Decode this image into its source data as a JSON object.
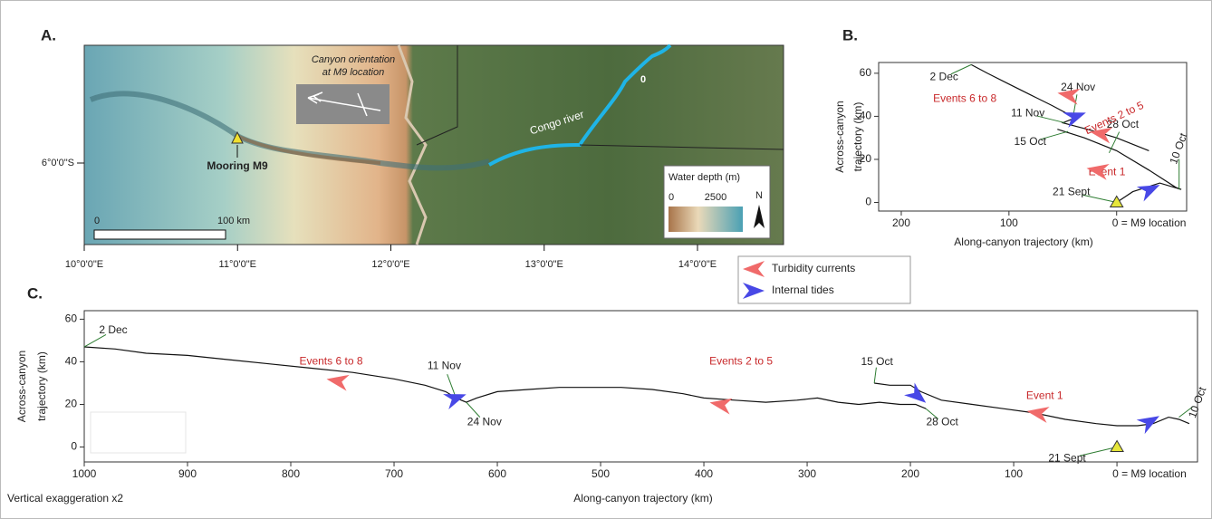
{
  "map": {
    "panel": "A.",
    "orientation_title": [
      "Canyon orientation",
      "at M9 location"
    ],
    "river": "Congo river",
    "river_mark": "0",
    "mooring": "Mooring M9",
    "depth_title": "Water depth (m)",
    "depth_min": "0",
    "depth_max": "2500",
    "north": "N",
    "scale_start": "0",
    "scale_end": "100 km",
    "latitude": "6°0'0\"S",
    "longitudes": [
      "10°0'0\"E",
      "11°0'0\"E",
      "12°0'0\"E",
      "13°0'0\"E",
      "14°0'0\"E"
    ]
  },
  "chart_data": [
    {
      "type": "line",
      "panel": "B.",
      "xlabel": "Along-canyon trajectory (km)",
      "ylabel": [
        "Across-canyon",
        "trajectory (km)"
      ],
      "xlim": [
        221,
        -65
      ],
      "ylim": [
        -4,
        65
      ],
      "xticks": [
        200,
        100,
        {
          "value": 0,
          "label": "0 = M9 location"
        }
      ],
      "yticks": [
        0,
        20,
        40,
        60
      ],
      "line_color": "#111111",
      "x": [
        135,
        120,
        100,
        80,
        60,
        45,
        40,
        50,
        35,
        20,
        0,
        -20,
        -30,
        null,
        55,
        30,
        0,
        -30,
        -55,
        -60,
        -40,
        -15,
        0
      ],
      "y": [
        64,
        60,
        55,
        50,
        45,
        41,
        39,
        37,
        35,
        33,
        30,
        26,
        24,
        null,
        34,
        30,
        24,
        15,
        7,
        6,
        9,
        5,
        0
      ],
      "series": [
        {
          "color": "#f06a6a",
          "x": [
            45,
            15,
            18
          ],
          "y": [
            50,
            32,
            15
          ]
        },
        {
          "color": "#4848e6",
          "x": [
            38,
            -31
          ],
          "y": [
            40,
            6
          ]
        }
      ],
      "events": {
        "color": "#c8282a",
        "labels": [
          "Events 6 to 8",
          "Events 2 to 5",
          "Event 1"
        ],
        "x": [
          141,
          2,
          9
        ],
        "y": [
          48,
          39,
          14
        ]
      },
      "dates": {
        "labels": [
          "2 Dec",
          "24 Nov",
          "11 Nov",
          "15 Oct",
          "28 Oct",
          "10 Oct",
          "21 Sept"
        ],
        "x": [
          135,
          40,
          48,
          45,
          7,
          -58,
          0
        ],
        "y": [
          64,
          41,
          37,
          33,
          23,
          6,
          0
        ]
      },
      "mooring": {
        "x": 0,
        "y": 0,
        "color": "#e6e63a"
      }
    },
    {
      "type": "line",
      "panel": "C.",
      "xlabel": "Along-canyon trajectory (km)",
      "ylabel": [
        "Across-canyon",
        "trajectory (km)"
      ],
      "note": "Vertical exaggeration x2",
      "xlim": [
        1000,
        -78
      ],
      "ylim": [
        -7,
        64
      ],
      "xticks": [
        1000,
        900,
        800,
        700,
        600,
        500,
        400,
        300,
        200,
        100,
        {
          "value": 0,
          "label": "0 = M9 location"
        }
      ],
      "yticks": [
        0,
        20,
        40,
        60
      ],
      "line_color": "#111111",
      "x": [
        1000,
        970,
        940,
        900,
        860,
        820,
        780,
        740,
        700,
        670,
        650,
        640,
        630,
        620,
        600,
        570,
        540,
        510,
        480,
        450,
        420,
        400,
        370,
        340,
        310,
        290,
        270,
        250,
        230,
        210,
        195,
        185,
        null,
        235,
        220,
        205,
        200,
        190,
        170,
        140,
        110,
        80,
        50,
        20,
        0,
        -20,
        -35,
        -50,
        -60,
        -70
      ],
      "y": [
        47,
        46,
        44,
        43,
        41,
        39,
        37,
        35,
        32,
        29,
        26,
        23,
        21,
        23,
        26,
        27,
        28,
        28,
        28,
        27,
        25,
        23,
        22,
        21,
        22,
        23,
        21,
        20,
        21,
        20,
        20,
        18,
        null,
        30,
        29,
        29,
        29,
        26,
        22,
        20,
        18,
        16,
        13,
        11,
        10,
        10,
        11,
        14,
        13,
        11
      ],
      "series": [
        {
          "name": "Turbidity currents",
          "color": "#f06a6a",
          "x": [
            755,
            384,
            77
          ],
          "y": [
            31,
            20,
            16
          ]
        },
        {
          "name": "Internal tides",
          "color": "#4848e6",
          "x": [
            640,
            193,
            -32
          ],
          "y": [
            23,
            24,
            12
          ]
        }
      ],
      "events": {
        "color": "#c8282a",
        "labels": [
          "Events 6 to 8",
          "Events 2 to 5",
          "Event 1"
        ],
        "x": [
          761,
          364,
          70
        ],
        "y": [
          40,
          40,
          24
        ]
      },
      "dates": {
        "labels": [
          "2 Dec",
          "11 Nov",
          "24 Nov",
          "15 Oct",
          "28 Oct",
          "10 Oct",
          "21 Sept"
        ],
        "x": [
          1000,
          640,
          630,
          235,
          185,
          -60,
          0
        ],
        "y": [
          47,
          23,
          21,
          30,
          18,
          14,
          0
        ]
      },
      "mooring": {
        "x": 0,
        "y": 0,
        "color": "#e6e63a"
      }
    }
  ]
}
